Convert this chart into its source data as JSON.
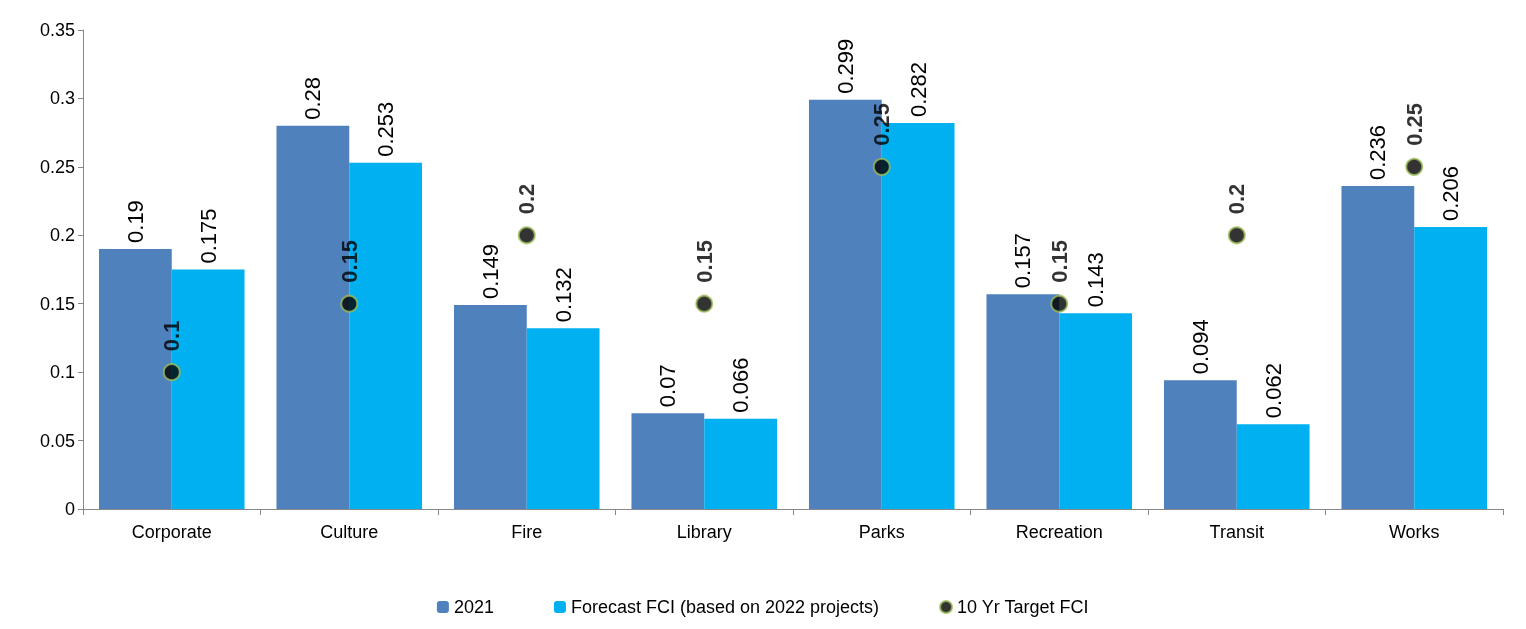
{
  "chart_data": {
    "type": "bar",
    "categories": [
      "Corporate",
      "Culture",
      "Fire",
      "Library",
      "Parks",
      "Recreation",
      "Transit",
      "Works"
    ],
    "series": [
      {
        "name": "2021",
        "color": "#4f81bd",
        "values": [
          0.19,
          0.28,
          0.149,
          0.07,
          0.299,
          0.157,
          0.094,
          0.236
        ]
      },
      {
        "name": "Forecast FCI (based on 2022 projects)",
        "color": "#00b0f0",
        "values": [
          0.175,
          0.253,
          0.132,
          0.066,
          0.282,
          0.143,
          0.062,
          0.206
        ]
      },
      {
        "name": "10 Yr Target FCI",
        "type": "scatter",
        "marker": "circle",
        "color": "#000000",
        "x": [
          "Corporate",
          "Culture",
          "Fire",
          "Library",
          "Parks",
          "Recreation",
          "Transit",
          "Works"
        ],
        "values": [
          0.1,
          0.15,
          0.2,
          0.15,
          0.25,
          0.15,
          0.2,
          0.25
        ]
      }
    ],
    "ylim": [
      0,
      0.35
    ],
    "yticks": [
      0,
      0.05,
      0.1,
      0.15,
      0.2,
      0.25,
      0.3,
      0.35
    ],
    "grid": false,
    "legend": "bottom",
    "data_labels": true
  }
}
